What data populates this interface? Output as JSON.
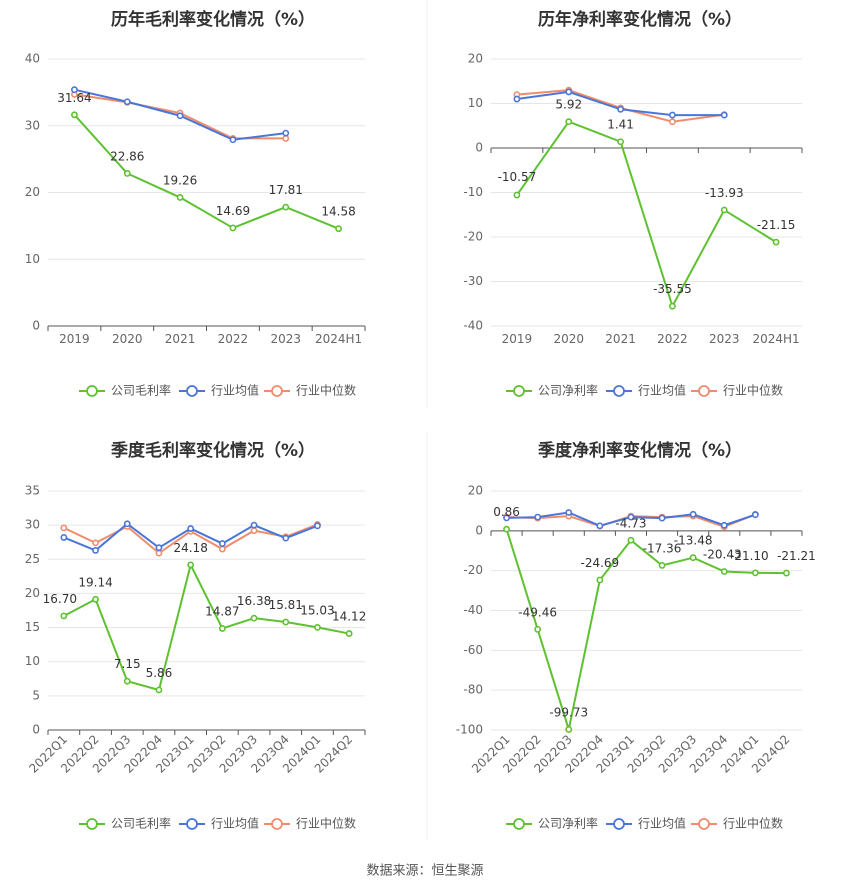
{
  "source_label": "数据来源：恒生聚源",
  "colors": {
    "company": "#5ec12f",
    "avg": "#4a76d9",
    "median": "#f08c6c"
  },
  "chart_data": [
    {
      "type": "line",
      "title": "历年毛利率变化情况（%）",
      "categories": [
        "2019",
        "2020",
        "2021",
        "2022",
        "2023",
        "2024H1"
      ],
      "ylim": [
        0,
        40
      ],
      "yticks": [
        0,
        10,
        20,
        30,
        40
      ],
      "series": [
        {
          "name": "公司毛利率",
          "values": [
            31.64,
            22.86,
            19.26,
            14.69,
            17.81,
            14.58
          ],
          "labels": [
            "31.64",
            "22.86",
            "19.26",
            "14.69",
            "17.81",
            "14.58"
          ]
        },
        {
          "name": "行业均值",
          "values": [
            35.4,
            33.6,
            31.5,
            27.9,
            28.9,
            null
          ]
        },
        {
          "name": "行业中位数",
          "values": [
            34.7,
            33.5,
            31.9,
            28.1,
            28.1,
            null
          ]
        }
      ]
    },
    {
      "type": "line",
      "title": "历年净利率变化情况（%）",
      "categories": [
        "2019",
        "2020",
        "2021",
        "2022",
        "2023",
        "2024H1"
      ],
      "ylim": [
        -40,
        20
      ],
      "yticks": [
        -40,
        -30,
        -20,
        -10,
        0,
        10,
        20
      ],
      "series": [
        {
          "name": "公司净利率",
          "values": [
            -10.57,
            5.92,
            1.41,
            -35.55,
            -13.93,
            -21.15
          ],
          "labels": [
            "-10.57",
            "5.92",
            "1.41",
            "-35.55",
            "-13.93",
            "-21.15"
          ]
        },
        {
          "name": "行业均值",
          "values": [
            11.0,
            12.6,
            8.7,
            7.4,
            7.4,
            null
          ]
        },
        {
          "name": "行业中位数",
          "values": [
            12.0,
            13.0,
            9.0,
            5.9,
            7.5,
            null
          ]
        }
      ]
    },
    {
      "type": "line",
      "title": "季度毛利率变化情况（%）",
      "categories": [
        "2022Q1",
        "2022Q2",
        "2022Q3",
        "2022Q4",
        "2023Q1",
        "2023Q2",
        "2023Q3",
        "2023Q4",
        "2024Q1",
        "2024Q2"
      ],
      "ylim": [
        0,
        35
      ],
      "yticks": [
        0,
        5,
        10,
        15,
        20,
        25,
        30,
        35
      ],
      "series": [
        {
          "name": "公司毛利率",
          "values": [
            16.7,
            19.14,
            7.15,
            5.86,
            24.18,
            14.87,
            16.38,
            15.81,
            15.03,
            14.12
          ],
          "labels": [
            "16.70",
            "19.14",
            "7.15",
            "5.86",
            "24.18",
            "14.87",
            "16.38",
            "15.81",
            "15.03",
            "14.12"
          ]
        },
        {
          "name": "行业均值",
          "values": [
            28.2,
            26.3,
            30.2,
            26.7,
            29.5,
            27.3,
            30.0,
            28.1,
            29.9,
            null
          ]
        },
        {
          "name": "行业中位数",
          "values": [
            29.6,
            27.4,
            29.8,
            25.9,
            29.1,
            26.5,
            29.2,
            28.3,
            30.1,
            null
          ]
        }
      ]
    },
    {
      "type": "line",
      "title": "季度净利率变化情况（%）",
      "categories": [
        "2022Q1",
        "2022Q2",
        "2022Q3",
        "2022Q4",
        "2023Q1",
        "2023Q2",
        "2023Q3",
        "2023Q4",
        "2024Q1",
        "2024Q2"
      ],
      "ylim": [
        -100,
        20
      ],
      "yticks": [
        -100,
        -80,
        -60,
        -40,
        -20,
        0,
        20
      ],
      "series": [
        {
          "name": "公司净利率",
          "values": [
            0.86,
            -49.46,
            -99.73,
            -24.69,
            -4.73,
            -17.36,
            -13.48,
            -20.43,
            -21.1,
            -21.21
          ],
          "labels": [
            "0.86",
            "-49.46",
            "-99.73",
            "-24.69",
            "-4.73",
            "-17.36",
            "-13.48",
            "-20.43",
            "-21.10",
            "-21.21"
          ]
        },
        {
          "name": "行业均值",
          "values": [
            6.5,
            6.9,
            9.2,
            2.5,
            6.9,
            6.4,
            8.3,
            2.8,
            8.1,
            null
          ]
        },
        {
          "name": "行业中位数",
          "values": [
            6.9,
            6.4,
            7.4,
            2.4,
            7.4,
            6.9,
            7.4,
            2.0,
            8.3,
            null
          ]
        }
      ]
    }
  ]
}
